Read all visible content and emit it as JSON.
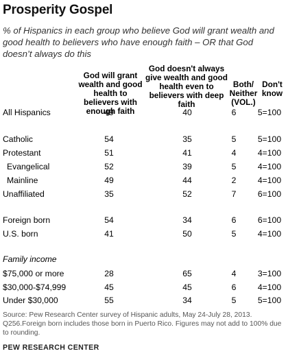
{
  "title": "Prosperity Gospel",
  "subtitle": "% of Hispanics in each group who believe God will grant wealth and good health to believers who have enough faith – OR that God doesn’t always do this",
  "chart_data": {
    "type": "table",
    "columns": [
      "God will grant wealth and good health to believers with enough faith",
      "God doesn't always give wealth and good health even to believers with deep faith",
      "Both/ Neither (VOL.)",
      "Don't know"
    ],
    "rows": [
      {
        "label": "All Hispanics",
        "values": [
          "49",
          "40",
          "6",
          "5=100"
        ]
      },
      {
        "label": "Catholic",
        "values": [
          "54",
          "35",
          "5",
          "5=100"
        ]
      },
      {
        "label": "Protestant",
        "values": [
          "51",
          "41",
          "4",
          "4=100"
        ]
      },
      {
        "label": "Evangelical",
        "values": [
          "52",
          "39",
          "5",
          "4=100"
        ]
      },
      {
        "label": "Mainline",
        "values": [
          "49",
          "44",
          "2",
          "4=100"
        ]
      },
      {
        "label": "Unaffiliated",
        "values": [
          "35",
          "52",
          "7",
          "6=100"
        ]
      },
      {
        "label": "Foreign born",
        "values": [
          "54",
          "34",
          "6",
          "6=100"
        ]
      },
      {
        "label": "U.S. born",
        "values": [
          "41",
          "50",
          "5",
          "4=100"
        ]
      },
      {
        "label": "$75,000 or more",
        "values": [
          "28",
          "65",
          "4",
          "3=100"
        ]
      },
      {
        "label": "$30,000-$74,999",
        "values": [
          "45",
          "45",
          "6",
          "4=100"
        ]
      },
      {
        "label": "Under $30,000",
        "values": [
          "55",
          "34",
          "5",
          "5=100"
        ]
      }
    ],
    "sections": [
      "Family income"
    ]
  },
  "source": "Source: Pew Research Center survey of Hispanic adults, May 24-July 28, 2013. Q256.Foreign born includes those born in Puerto Rico. Figures may not add to 100% due to rounding.",
  "logo": "PEW RESEARCH CENTER"
}
